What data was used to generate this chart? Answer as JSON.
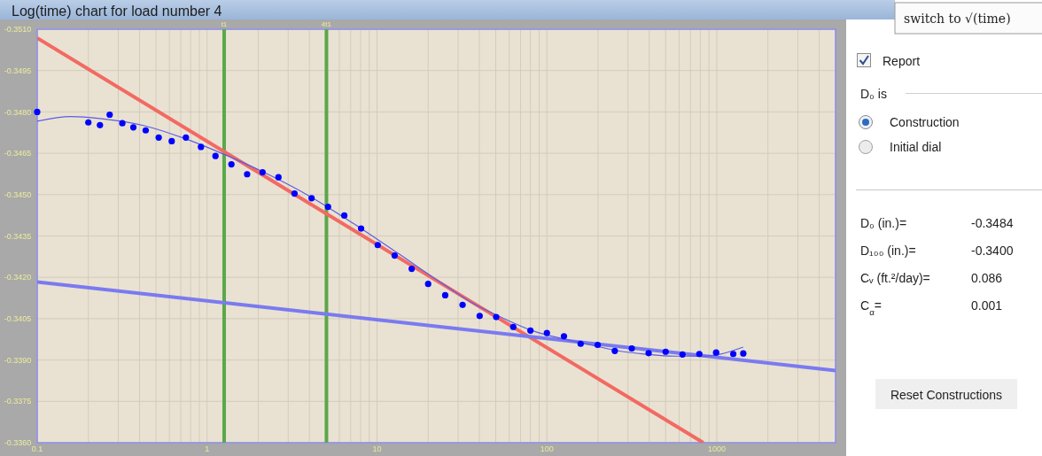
{
  "chart_data": [
    {
      "type": "scatter",
      "title": "Log(time) chart for load number 4",
      "log": "x",
      "grid": true,
      "xlim": [
        0.1,
        5000
      ],
      "ylim": [
        -0.336,
        -0.351
      ],
      "xticks": [
        0.1,
        {
          "value": 0.2,
          "label": null
        },
        {
          "value": 0.3,
          "label": null
        },
        {
          "value": 0.4,
          "label": null
        },
        {
          "value": 0.5,
          "label": null
        },
        {
          "value": 0.6,
          "label": null
        },
        {
          "value": 0.7,
          "label": null
        },
        {
          "value": 0.8,
          "label": null
        },
        {
          "value": 0.9,
          "label": null
        },
        1,
        {
          "value": 2,
          "label": null
        },
        {
          "value": 3,
          "label": null
        },
        {
          "value": 4,
          "label": null
        },
        {
          "value": 5,
          "label": null
        },
        {
          "value": 6,
          "label": null
        },
        {
          "value": 7,
          "label": null
        },
        {
          "value": 8,
          "label": null
        },
        {
          "value": 9,
          "label": null
        },
        10,
        {
          "value": 20,
          "label": null
        },
        {
          "value": 30,
          "label": null
        },
        {
          "value": 40,
          "label": null
        },
        {
          "value": 50,
          "label": null
        },
        {
          "value": 60,
          "label": null
        },
        {
          "value": 70,
          "label": null
        },
        {
          "value": 80,
          "label": null
        },
        {
          "value": 90,
          "label": null
        },
        100,
        {
          "value": 200,
          "label": null
        },
        {
          "value": 300,
          "label": null
        },
        {
          "value": 400,
          "label": null
        },
        {
          "value": 500,
          "label": null
        },
        {
          "value": 600,
          "label": null
        },
        {
          "value": 700,
          "label": null
        },
        {
          "value": 800,
          "label": null
        },
        {
          "value": 900,
          "label": null
        },
        1000,
        {
          "value": 2000,
          "label": null
        },
        {
          "value": 3000,
          "label": null
        },
        {
          "value": 4000,
          "label": null
        }
      ],
      "yticks": [
        {
          "value": -0.351,
          "label": "-0.3510"
        },
        -0.3495,
        {
          "value": -0.348,
          "label": "-0.3480"
        },
        -0.3465,
        {
          "value": -0.345,
          "label": "-0.3450"
        },
        -0.3435,
        {
          "value": -0.342,
          "label": "-0.3420"
        },
        -0.3405,
        {
          "value": -0.339,
          "label": "-0.3390"
        },
        -0.3375,
        {
          "value": -0.336,
          "label": "-0.3360"
        }
      ],
      "ref_lines": [
        {
          "axis": "x",
          "value": 1.26,
          "label": "t1",
          "color": "#5aa84a"
        },
        {
          "axis": "x",
          "value": 5.04,
          "label": "4t1",
          "color": "#5aa84a"
        }
      ],
      "series": [
        {
          "type": "line",
          "color": "#f26a62",
          "x": [
            0.1,
            833
          ],
          "values": [
            -0.35068,
            -0.336
          ]
        },
        {
          "type": "line",
          "color": "#7a7af0",
          "x": [
            0.1,
            5000
          ],
          "values": [
            -0.34183,
            -0.33862
          ]
        },
        {
          "type": "line",
          "color": "#5c5ce4",
          "x": [
            0.1,
            0.158,
            0.234,
            0.427,
            0.75,
            1.26,
            2.21,
            4.02,
            7.32,
            13.3,
            24.3,
            39.2,
            51.7,
            83.5,
            126,
            187,
            258,
            383,
            569,
            855,
            1040,
            1430
          ],
          "values": [
            -0.34766,
            -0.34783,
            -0.34776,
            -0.3475,
            -0.34702,
            -0.34646,
            -0.34578,
            -0.34494,
            -0.34394,
            -0.34287,
            -0.34177,
            -0.34096,
            -0.3406,
            -0.34005,
            -0.33976,
            -0.33953,
            -0.33934,
            -0.33921,
            -0.33914,
            -0.33914,
            -0.33921,
            -0.33947
          ]
        },
        {
          "type": "scatter",
          "marker": "circle",
          "color": "#0000ff",
          "x": [
            0.1,
            0.2,
            0.234,
            0.267,
            0.317,
            0.368,
            0.435,
            0.519,
            0.619,
            0.75,
            0.92,
            1.12,
            1.39,
            1.72,
            2.12,
            2.63,
            3.27,
            4.12,
            5.15,
            6.42,
            8.06,
            10.1,
            12.7,
            16,
            20,
            25.2,
            31.9,
            40.2,
            50.3,
            63.4,
            80,
            100,
            126,
            158,
            199,
            251,
            316,
            397,
            500,
            628,
            789,
            991,
            1250,
            1432
          ],
          "values": [
            -0.348,
            -0.34762,
            -0.34752,
            -0.3479,
            -0.34759,
            -0.34744,
            -0.34733,
            -0.34707,
            -0.34694,
            -0.34707,
            -0.34673,
            -0.3464,
            -0.3461,
            -0.34574,
            -0.34581,
            -0.34563,
            -0.34504,
            -0.34487,
            -0.34456,
            -0.34424,
            -0.34377,
            -0.34317,
            -0.34279,
            -0.34231,
            -0.34176,
            -0.34135,
            -0.341,
            -0.3406,
            -0.34056,
            -0.3402,
            -0.34007,
            -0.33998,
            -0.33986,
            -0.33959,
            -0.33955,
            -0.33933,
            -0.33942,
            -0.33925,
            -0.3393,
            -0.3392,
            -0.33922,
            -0.33927,
            -0.33922,
            -0.33924
          ]
        }
      ]
    },
    {
      "type": "other",
      "annotations": [
        "switch to √(time)",
        "Report",
        "D₀ is",
        "Construction",
        "Initial dial",
        "D₀ (in.)=",
        "-0.3484",
        "D₁₀₀ (in.)=",
        "-0.3400",
        "Cᵥ (ft.²/day)=",
        "0.086",
        "C$_{α}$=",
        "0.001",
        "Reset Constructions"
      ]
    }
  ]
}
